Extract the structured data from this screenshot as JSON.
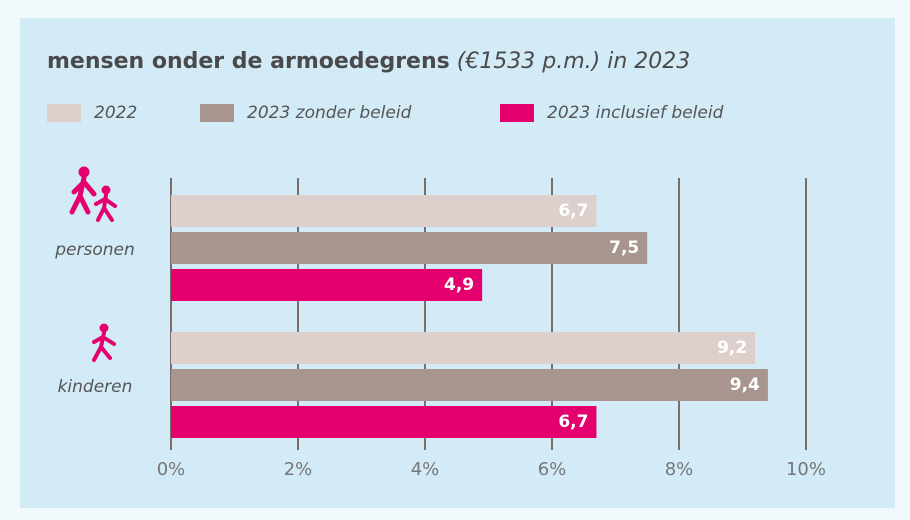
{
  "chart_data": {
    "type": "hbar",
    "title": "mensen onder de armoedegrens",
    "subtitle": "(€1533 p.m.) in 2023",
    "categories": [
      "personen",
      "kinderen"
    ],
    "series": [
      {
        "name": "2022",
        "color": "#dccfcc",
        "values": [
          6.7,
          9.2
        ],
        "value_labels": [
          "6,7",
          "9,2"
        ]
      },
      {
        "name": "2023 zonder beleid",
        "color": "#a8958f",
        "values": [
          7.5,
          9.4
        ],
        "value_labels": [
          "7,5",
          "9,4"
        ]
      },
      {
        "name": "2023 inclusief beleid",
        "color": "#e4006e",
        "values": [
          4.9,
          6.7
        ],
        "value_labels": [
          "4,9",
          "6,7"
        ]
      }
    ],
    "xlim": [
      0,
      10
    ],
    "xticks": [
      {
        "value": 0,
        "label": "0%"
      },
      {
        "value": 2,
        "label": "2%"
      },
      {
        "value": 4,
        "label": "4%"
      },
      {
        "value": 6,
        "label": "6%"
      },
      {
        "value": 8,
        "label": "8%"
      },
      {
        "value": 10,
        "label": "10%"
      }
    ],
    "grid": true
  }
}
